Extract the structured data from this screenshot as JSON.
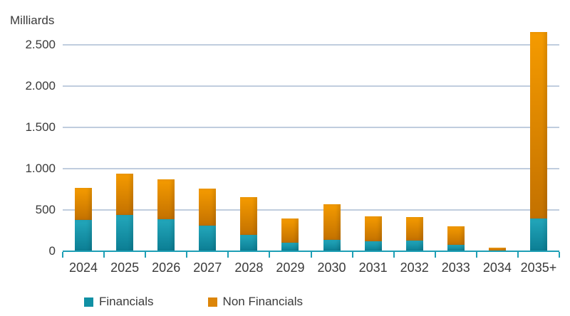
{
  "chart_data": {
    "type": "bar",
    "stacked": true,
    "title": "",
    "ylabel": "Milliards",
    "xlabel": "",
    "categories": [
      "2024",
      "2025",
      "2026",
      "2027",
      "2028",
      "2029",
      "2030",
      "2031",
      "2032",
      "2033",
      "2034",
      "2035+"
    ],
    "series": [
      {
        "name": "Financials",
        "values": [
          380,
          440,
          390,
          310,
          200,
          100,
          140,
          120,
          130,
          80,
          10,
          400
        ],
        "color_top": "#23a7bb",
        "color_bottom": "#0b7d93",
        "legend_color": "#1090a4"
      },
      {
        "name": "Non Financials",
        "values": [
          390,
          500,
          480,
          450,
          450,
          300,
          430,
          300,
          280,
          220,
          30,
          2250
        ],
        "color_top": "#f59b00",
        "color_bottom": "#c37100",
        "legend_color": "#dc8508"
      }
    ],
    "yticks": [
      {
        "label": "0",
        "value": 0
      },
      {
        "label": "500",
        "value": 500
      },
      {
        "label": "1.000",
        "value": 1000
      },
      {
        "label": "1.500",
        "value": 1500
      },
      {
        "label": "2.000",
        "value": 2000
      },
      {
        "label": "2.500",
        "value": 2500
      }
    ],
    "ylim": [
      0,
      2700
    ],
    "grid": true,
    "legend_position": "bottom",
    "colors": {
      "axis": "#1e9fb5",
      "gridline": "#c0cdde",
      "text": "#3a3a3a"
    }
  }
}
